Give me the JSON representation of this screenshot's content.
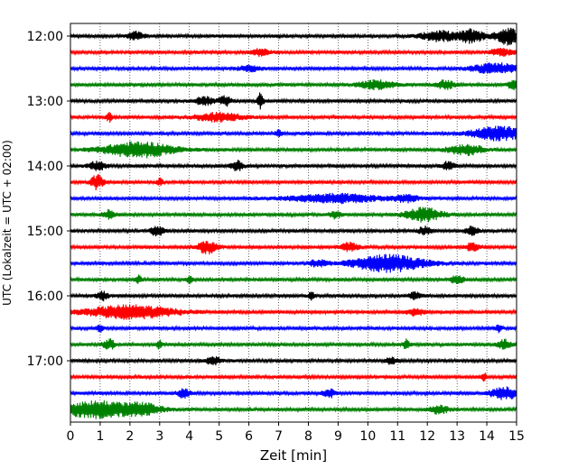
{
  "chart_data": {
    "type": "line",
    "title": "",
    "xlabel": "Zeit  [min]",
    "ylabel": "UTC (Lokalzeit = UTC + 02:00)",
    "xlim": [
      0,
      15
    ],
    "xticks": [
      "0",
      "1",
      "2",
      "3",
      "4",
      "5",
      "6",
      "7",
      "8",
      "9",
      "10",
      "11",
      "12",
      "13",
      "14",
      "15"
    ],
    "yticks": [
      "12:00",
      "13:00",
      "14:00",
      "15:00",
      "16:00",
      "17:00"
    ],
    "grid": "vertical dotted at each minute",
    "trace_interval_min": 15,
    "colors_cycle": [
      "#000000",
      "#ff0000",
      "#0000ff",
      "#008000"
    ],
    "traces": [
      {
        "start": "12:00",
        "color": "#000000",
        "events": [
          [
            2.2,
            0.25,
            0.5
          ],
          [
            12.4,
            0.6,
            0.6
          ],
          [
            13.5,
            0.4,
            0.8
          ],
          [
            14.7,
            0.4,
            1.0
          ]
        ]
      },
      {
        "start": "12:15",
        "color": "#ff0000",
        "events": [
          [
            6.4,
            0.3,
            0.4
          ],
          [
            14.5,
            0.4,
            0.4
          ]
        ]
      },
      {
        "start": "12:30",
        "color": "#0000ff",
        "events": [
          [
            14.3,
            0.8,
            0.6
          ],
          [
            6.0,
            0.4,
            0.3
          ]
        ]
      },
      {
        "start": "12:45",
        "color": "#008000",
        "events": [
          [
            10.3,
            0.6,
            0.5
          ],
          [
            12.6,
            0.3,
            0.5
          ],
          [
            14.9,
            0.2,
            0.5
          ]
        ]
      },
      {
        "start": "13:00",
        "color": "#000000",
        "events": [
          [
            4.5,
            0.3,
            0.5
          ],
          [
            5.2,
            0.2,
            0.6
          ],
          [
            6.4,
            0.1,
            1.0
          ]
        ]
      },
      {
        "start": "13:15",
        "color": "#ff0000",
        "events": [
          [
            1.3,
            0.1,
            0.5
          ],
          [
            5.0,
            0.8,
            0.5
          ]
        ]
      },
      {
        "start": "13:30",
        "color": "#0000ff",
        "events": [
          [
            7.0,
            0.1,
            0.4
          ],
          [
            14.4,
            0.9,
            0.8
          ]
        ]
      },
      {
        "start": "13:45",
        "color": "#008000",
        "events": [
          [
            2.3,
            1.2,
            0.9
          ],
          [
            13.3,
            0.6,
            0.6
          ]
        ]
      },
      {
        "start": "14:00",
        "color": "#000000",
        "events": [
          [
            0.9,
            0.3,
            0.5
          ],
          [
            5.6,
            0.2,
            0.6
          ],
          [
            12.7,
            0.2,
            0.5
          ]
        ]
      },
      {
        "start": "14:15",
        "color": "#ff0000",
        "events": [
          [
            0.9,
            0.2,
            0.9
          ],
          [
            3.0,
            0.1,
            0.4
          ]
        ]
      },
      {
        "start": "14:30",
        "color": "#0000ff",
        "events": [
          [
            8.9,
            1.5,
            0.5
          ],
          [
            11.3,
            0.4,
            0.4
          ]
        ]
      },
      {
        "start": "14:45",
        "color": "#008000",
        "events": [
          [
            1.3,
            0.2,
            0.5
          ],
          [
            8.9,
            0.2,
            0.4
          ],
          [
            11.9,
            0.6,
            0.8
          ]
        ]
      },
      {
        "start": "15:00",
        "color": "#000000",
        "events": [
          [
            2.9,
            0.2,
            0.7
          ],
          [
            11.9,
            0.2,
            0.5
          ],
          [
            13.5,
            0.2,
            0.5
          ]
        ]
      },
      {
        "start": "15:15",
        "color": "#ff0000",
        "events": [
          [
            4.6,
            0.3,
            0.8
          ],
          [
            9.4,
            0.3,
            0.5
          ],
          [
            13.5,
            0.2,
            0.5
          ]
        ]
      },
      {
        "start": "15:30",
        "color": "#0000ff",
        "events": [
          [
            10.7,
            1.2,
            1.0
          ],
          [
            8.3,
            0.3,
            0.4
          ]
        ]
      },
      {
        "start": "15:45",
        "color": "#008000",
        "events": [
          [
            2.3,
            0.1,
            0.5
          ],
          [
            4.0,
            0.1,
            0.4
          ],
          [
            13.0,
            0.2,
            0.6
          ]
        ]
      },
      {
        "start": "16:00",
        "color": "#000000",
        "events": [
          [
            1.1,
            0.2,
            0.5
          ],
          [
            8.1,
            0.1,
            0.4
          ],
          [
            11.6,
            0.2,
            0.4
          ]
        ]
      },
      {
        "start": "16:15",
        "color": "#ff0000",
        "events": [
          [
            2.0,
            1.5,
            0.8
          ],
          [
            11.6,
            0.3,
            0.4
          ]
        ]
      },
      {
        "start": "16:30",
        "color": "#0000ff",
        "events": [
          [
            1.0,
            0.1,
            0.4
          ],
          [
            14.4,
            0.1,
            0.4
          ]
        ]
      },
      {
        "start": "16:45",
        "color": "#008000",
        "events": [
          [
            1.3,
            0.2,
            0.6
          ],
          [
            3.0,
            0.1,
            0.5
          ],
          [
            11.3,
            0.1,
            0.7
          ],
          [
            14.6,
            0.2,
            0.6
          ]
        ]
      },
      {
        "start": "17:00",
        "color": "#000000",
        "events": [
          [
            4.8,
            0.3,
            0.4
          ],
          [
            10.8,
            0.2,
            0.4
          ]
        ]
      },
      {
        "start": "17:15",
        "color": "#ff0000",
        "events": [
          [
            13.9,
            0.1,
            0.5
          ]
        ]
      },
      {
        "start": "17:30",
        "color": "#0000ff",
        "events": [
          [
            3.8,
            0.2,
            0.5
          ],
          [
            8.7,
            0.2,
            0.5
          ],
          [
            14.6,
            0.5,
            0.7
          ]
        ]
      },
      {
        "start": "17:45",
        "color": "#008000",
        "events": [
          [
            1.0,
            1.5,
            1.0
          ],
          [
            2.5,
            0.5,
            0.4
          ],
          [
            12.4,
            0.3,
            0.5
          ]
        ]
      }
    ]
  }
}
